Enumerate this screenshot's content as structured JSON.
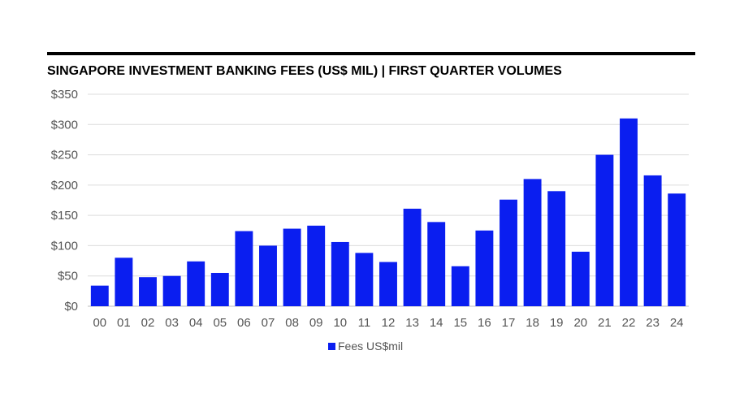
{
  "chart_data": {
    "type": "bar",
    "title": "SINGAPORE INVESTMENT BANKING FEES (US$ MIL)  |   FIRST QUARTER VOLUMES",
    "categories": [
      "00",
      "01",
      "02",
      "03",
      "04",
      "05",
      "06",
      "07",
      "08",
      "09",
      "10",
      "11",
      "12",
      "13",
      "14",
      "15",
      "16",
      "17",
      "18",
      "19",
      "20",
      "21",
      "22",
      "23",
      "24"
    ],
    "series": [
      {
        "name": "Fees US$mil",
        "color": "#0A1EF0",
        "values": [
          34,
          80,
          48,
          50,
          74,
          55,
          124,
          100,
          128,
          133,
          106,
          88,
          73,
          161,
          139,
          66,
          125,
          176,
          210,
          190,
          90,
          250,
          310,
          216,
          186
        ]
      }
    ],
    "yticks": [
      "$0",
      "$50",
      "$100",
      "$150",
      "$200",
      "$250",
      "$300",
      "$350"
    ],
    "ylim": [
      0,
      350
    ],
    "xlabel": "",
    "ylabel": "",
    "grid": true,
    "legend_position": "bottom"
  }
}
